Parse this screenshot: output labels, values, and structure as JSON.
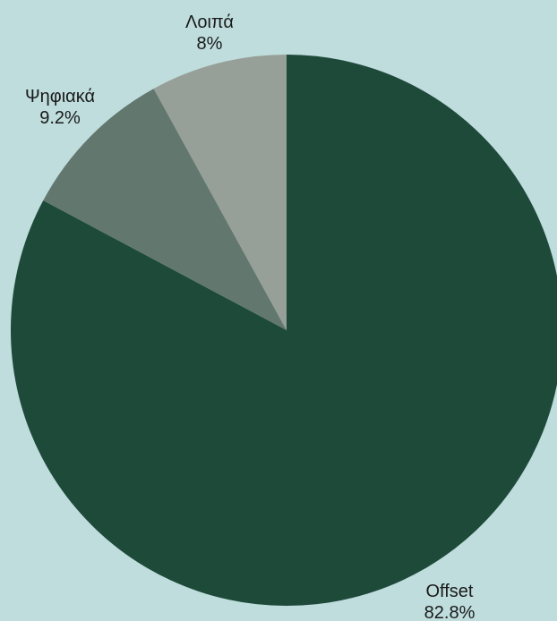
{
  "background": "#bfdddd",
  "chart_data": {
    "type": "pie",
    "slices": [
      {
        "label": "Offset",
        "value": 82.8,
        "value_label": "82.8%",
        "color": "#1e4a3a"
      },
      {
        "label": "Ψηφιακά",
        "value": 9.2,
        "value_label": "9.2%",
        "color": "#62776d"
      },
      {
        "label": "Λοιπά",
        "value": 8,
        "value_label": "8%",
        "color": "#979f99"
      }
    ],
    "start_angle_deg": 0,
    "direction": "clockwise",
    "legend": "none"
  }
}
